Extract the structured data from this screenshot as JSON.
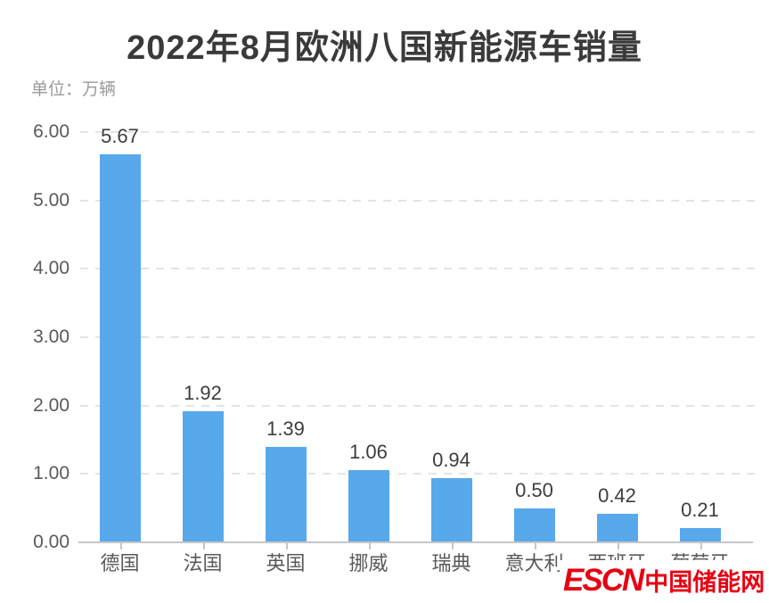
{
  "header": {
    "title": "2022年8月欧洲八国新能源车销量",
    "unit_label": "单位：万辆"
  },
  "watermark": {
    "logo_text": "ESCN",
    "site_name": "中国储能网",
    "color": "#e60012"
  },
  "chart_data": {
    "type": "bar",
    "title": "2022年8月欧洲八国新能源车销量",
    "unit": "万辆",
    "categories": [
      "德国",
      "法国",
      "英国",
      "挪威",
      "瑞典",
      "意大利",
      "西班牙",
      "葡萄牙"
    ],
    "values": [
      5.67,
      1.92,
      1.39,
      1.06,
      0.94,
      0.5,
      0.42,
      0.21
    ],
    "value_labels": [
      "5.67",
      "1.92",
      "1.39",
      "1.06",
      "0.94",
      "0.50",
      "0.42",
      "0.21"
    ],
    "xlabel": "",
    "ylabel": "万辆",
    "ylim": [
      0,
      6
    ],
    "ytick_labels": [
      "0.00",
      "1.00",
      "2.00",
      "3.00",
      "4.00",
      "5.00",
      "6.00"
    ],
    "grid": "horizontal-dashed",
    "legend_position": "none",
    "bar_color": "#58a8ec"
  }
}
